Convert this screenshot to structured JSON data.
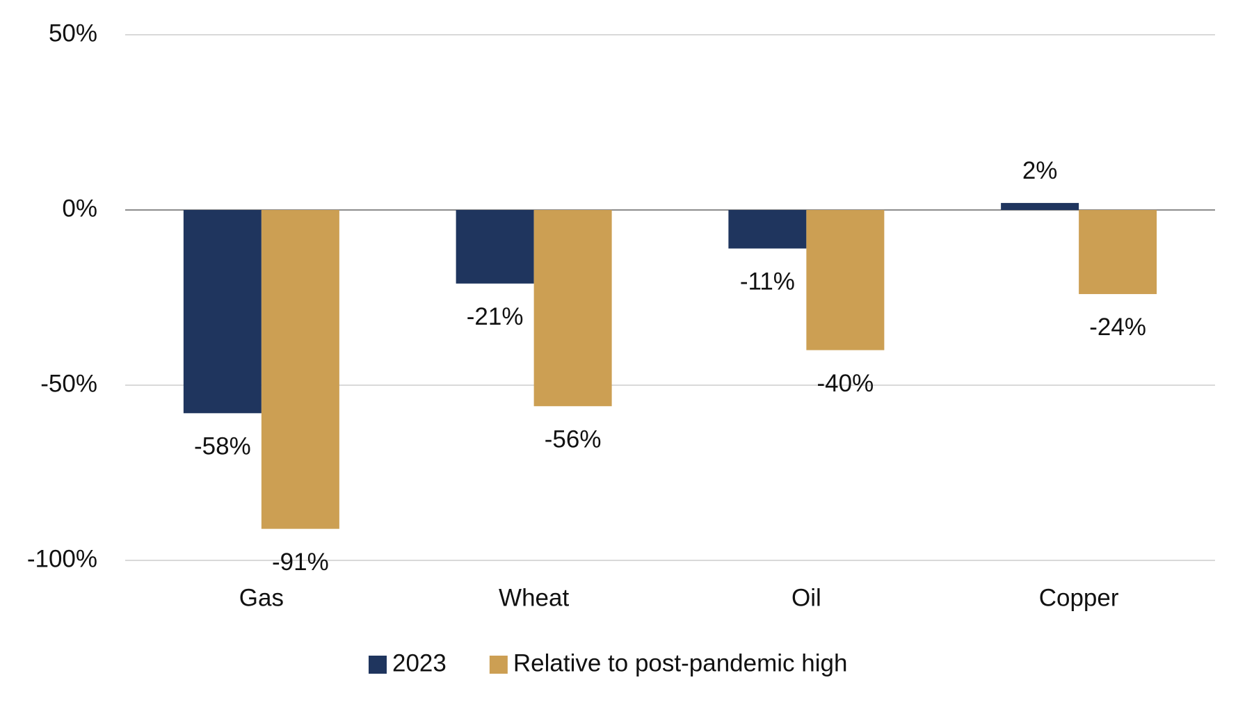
{
  "chart_data": {
    "type": "bar",
    "categories": [
      "Gas",
      "Wheat",
      "Oil",
      "Copper"
    ],
    "series": [
      {
        "name": "2023",
        "color": "#1f355e",
        "values": [
          -58,
          -21,
          -11,
          2
        ],
        "value_labels": [
          "-58%",
          "-21%",
          "-11%",
          "2%"
        ]
      },
      {
        "name": "Relative to post-pandemic high",
        "color": "#cc9f53",
        "values": [
          -91,
          -56,
          -40,
          -24
        ],
        "value_labels": [
          "-91%",
          "-56%",
          "-40%",
          "-24%"
        ]
      }
    ],
    "ylim": [
      -100,
      50
    ],
    "yticks": [
      {
        "value": -100,
        "label": "-100%"
      },
      {
        "value": -50,
        "label": "-50%"
      },
      {
        "value": 0,
        "label": "0%"
      },
      {
        "value": 50,
        "label": "50%"
      }
    ],
    "grid": true,
    "legend": "bottom"
  }
}
